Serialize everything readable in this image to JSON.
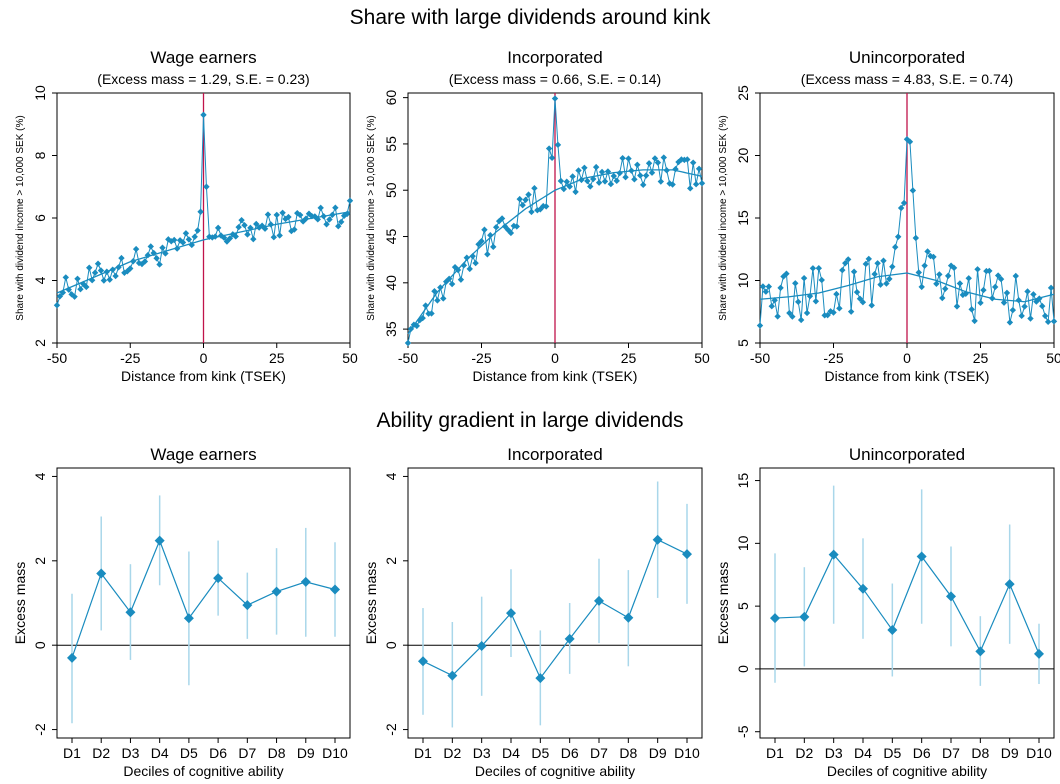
{
  "section_titles": {
    "top": "Share with large dividends around kink",
    "bottom": "Ability gradient in large dividends"
  },
  "colors": {
    "series": "#1a8cbf",
    "fit": "#1a8cbf",
    "kink_line": "#c0134a",
    "ci": "#a9d7ea",
    "zero_line": "#000000"
  },
  "chart_data": [
    {
      "type": "line",
      "title": "Wage earners",
      "subtitle": "(Excess mass = 1.29, S.E. = 0.23)",
      "xlabel": "Distance from kink (TSEK)",
      "ylabel": "Share with dividend income > 10,000 SEK (%)",
      "xlim": [
        -50,
        50
      ],
      "ylim": [
        2,
        10
      ],
      "xticks": [
        -50,
        -25,
        0,
        25,
        50
      ],
      "yticks": [
        2,
        4,
        6,
        8,
        10
      ],
      "kink_x": 0,
      "fit": {
        "x": [
          -50,
          -25,
          0,
          25,
          50
        ],
        "y": [
          3.6,
          4.6,
          5.3,
          5.8,
          6.2
        ]
      },
      "spike": {
        "x": [
          -2,
          -1,
          0,
          1,
          2
        ],
        "y": [
          5.6,
          6.2,
          9.3,
          7.0,
          5.4
        ]
      }
    },
    {
      "type": "line",
      "title": "Incorporated",
      "subtitle": "(Excess mass = 0.66, S.E. = 0.14)",
      "xlabel": "Distance from kink (TSEK)",
      "ylabel": "Share with dividend income > 10,000 SEK (%)",
      "xlim": [
        -50,
        50
      ],
      "ylim": [
        33.5,
        60.5
      ],
      "xticks": [
        -50,
        -25,
        0,
        25,
        50
      ],
      "yticks": [
        35,
        40,
        45,
        50,
        55,
        60
      ],
      "kink_x": 0,
      "fit": {
        "x": [
          -50,
          -40,
          -30,
          -20,
          -10,
          0,
          10,
          20,
          30,
          40,
          50
        ],
        "y": [
          34.5,
          39.0,
          42.5,
          45.5,
          48.0,
          50.0,
          51.3,
          51.9,
          52.2,
          52.2,
          51.5
        ]
      },
      "spike": {
        "x": [
          -2,
          -1,
          0,
          1,
          2
        ],
        "y": [
          54.5,
          53.5,
          59.9,
          54.9,
          51.0
        ]
      }
    },
    {
      "type": "line",
      "title": "Unincorporated",
      "subtitle": "(Excess mass = 4.83, S.E. = 0.74)",
      "xlabel": "Distance from kink (TSEK)",
      "ylabel": "Share with dividend income > 10,000 SEK (%)",
      "xlim": [
        -50,
        50
      ],
      "ylim": [
        5,
        25
      ],
      "xticks": [
        -50,
        -25,
        0,
        25,
        50
      ],
      "yticks": [
        5,
        10,
        15,
        20,
        25
      ],
      "kink_x": 0,
      "fit": {
        "x": [
          -50,
          -40,
          -30,
          -20,
          -10,
          0,
          10,
          20,
          30,
          40,
          50
        ],
        "y": [
          8.5,
          8.7,
          9.0,
          9.6,
          10.3,
          10.6,
          10.0,
          9.1,
          8.5,
          8.3,
          8.9
        ]
      },
      "spike": {
        "x": [
          -3,
          -2,
          -1,
          0,
          1,
          2,
          3
        ],
        "y": [
          13.5,
          15.8,
          16.2,
          21.3,
          21.1,
          17.2,
          13.4
        ]
      }
    },
    {
      "type": "line",
      "title": "Wage earners",
      "xlabel": "Deciles of cognitive ability",
      "ylabel": "Excess mass",
      "categories": [
        "D1",
        "D2",
        "D3",
        "D4",
        "D5",
        "D6",
        "D7",
        "D8",
        "D9",
        "D10"
      ],
      "values": [
        -0.3,
        1.7,
        0.78,
        2.48,
        0.64,
        1.59,
        0.95,
        1.27,
        1.5,
        1.32
      ],
      "ci_low": [
        -1.85,
        0.35,
        -0.35,
        1.42,
        -0.95,
        0.7,
        0.15,
        0.25,
        0.2,
        0.2
      ],
      "ci_high": [
        1.22,
        3.05,
        1.92,
        3.55,
        2.22,
        2.48,
        1.72,
        2.3,
        2.78,
        2.44
      ],
      "ylim": [
        -2.2,
        4.2
      ],
      "yticks": [
        -2,
        0,
        2,
        4
      ],
      "zero_line": 0
    },
    {
      "type": "line",
      "title": "Incorporated",
      "xlabel": "Deciles of cognitive ability",
      "ylabel": "Excess mass",
      "categories": [
        "D1",
        "D2",
        "D3",
        "D4",
        "D5",
        "D6",
        "D7",
        "D8",
        "D9",
        "D10"
      ],
      "values": [
        -0.38,
        -0.72,
        -0.02,
        0.76,
        -0.78,
        0.15,
        1.05,
        0.65,
        2.5,
        2.16
      ],
      "ci_low": [
        -1.65,
        -1.95,
        -1.2,
        -0.28,
        -1.9,
        -0.68,
        0.05,
        -0.5,
        1.12,
        0.98
      ],
      "ci_high": [
        0.88,
        0.55,
        1.15,
        1.8,
        0.35,
        1.0,
        2.05,
        1.78,
        3.88,
        3.35
      ],
      "ylim": [
        -2.2,
        4.2
      ],
      "yticks": [
        -2,
        0,
        2,
        4
      ],
      "zero_line": 0
    },
    {
      "type": "line",
      "title": "Unincorporated",
      "xlabel": "Deciles of cognitive ability",
      "ylabel": "Excess mass",
      "categories": [
        "D1",
        "D2",
        "D3",
        "D4",
        "D5",
        "D6",
        "D7",
        "D8",
        "D9",
        "D10"
      ],
      "values": [
        4.05,
        4.15,
        9.1,
        6.38,
        3.1,
        8.95,
        5.78,
        1.4,
        6.75,
        1.2
      ],
      "ci_low": [
        -1.1,
        0.2,
        3.6,
        2.4,
        -0.6,
        3.6,
        1.8,
        -1.35,
        2.0,
        -1.2
      ],
      "ci_high": [
        9.2,
        8.1,
        14.6,
        10.4,
        6.8,
        14.3,
        9.75,
        4.2,
        11.5,
        3.6
      ],
      "ylim": [
        -5.5,
        16
      ],
      "yticks": [
        -5,
        0,
        5,
        10,
        15
      ],
      "zero_line": 0
    }
  ]
}
